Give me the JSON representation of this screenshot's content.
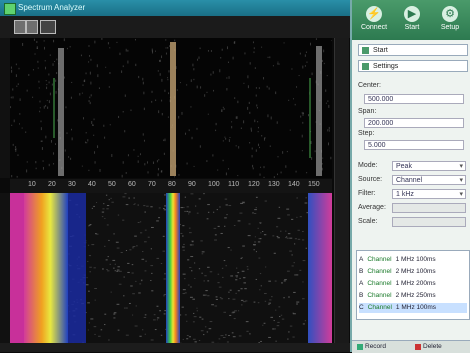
{
  "titlebar": {
    "title": "Spectrum Analyzer"
  },
  "axis": {
    "x_ticks": [
      "10",
      "20",
      "30",
      "40",
      "50",
      "60",
      "70",
      "80",
      "90",
      "100",
      "110",
      "120",
      "130",
      "140",
      "150"
    ]
  },
  "header_buttons": [
    {
      "label": "Connect",
      "icon": "plug-icon"
    },
    {
      "label": "Start",
      "icon": "play-icon"
    },
    {
      "label": "Setup",
      "icon": "gear-icon"
    }
  ],
  "panel": {
    "buttons": [
      {
        "label": "Start"
      },
      {
        "label": "Settings"
      }
    ],
    "fields": {
      "center_label": "Center:",
      "center_value": "500.000",
      "span_label": "Span:",
      "span_value": "200.000",
      "step_label": "Step:",
      "step_value": "5.000",
      "mode_label": "Mode:",
      "mode_value": "Peak",
      "source_label": "Source:",
      "source_value": "Channel",
      "filter_label": "Filter:",
      "filter_value": "1 kHz",
      "avg_label": "Average:",
      "scale_label": "Scale:"
    },
    "list_rows": [
      {
        "prefix": "A",
        "name": "Channel",
        "value": "1 MHz 100ms"
      },
      {
        "prefix": "B",
        "name": "Channel",
        "value": "2 MHz 100ms"
      },
      {
        "prefix": "A",
        "name": "Channel",
        "value": "1 MHz 200ms"
      },
      {
        "prefix": "B",
        "name": "Channel",
        "value": "2 MHz 250ms"
      },
      {
        "prefix": "C",
        "name": "Channel",
        "value": "1 MHz 100ms"
      }
    ],
    "footer_tabs": [
      {
        "label": "Record"
      },
      {
        "label": "Delete"
      }
    ]
  },
  "colors": {
    "accent": "#2d7a50",
    "trace": "#a0a0a0",
    "marker": "#4caf50"
  }
}
